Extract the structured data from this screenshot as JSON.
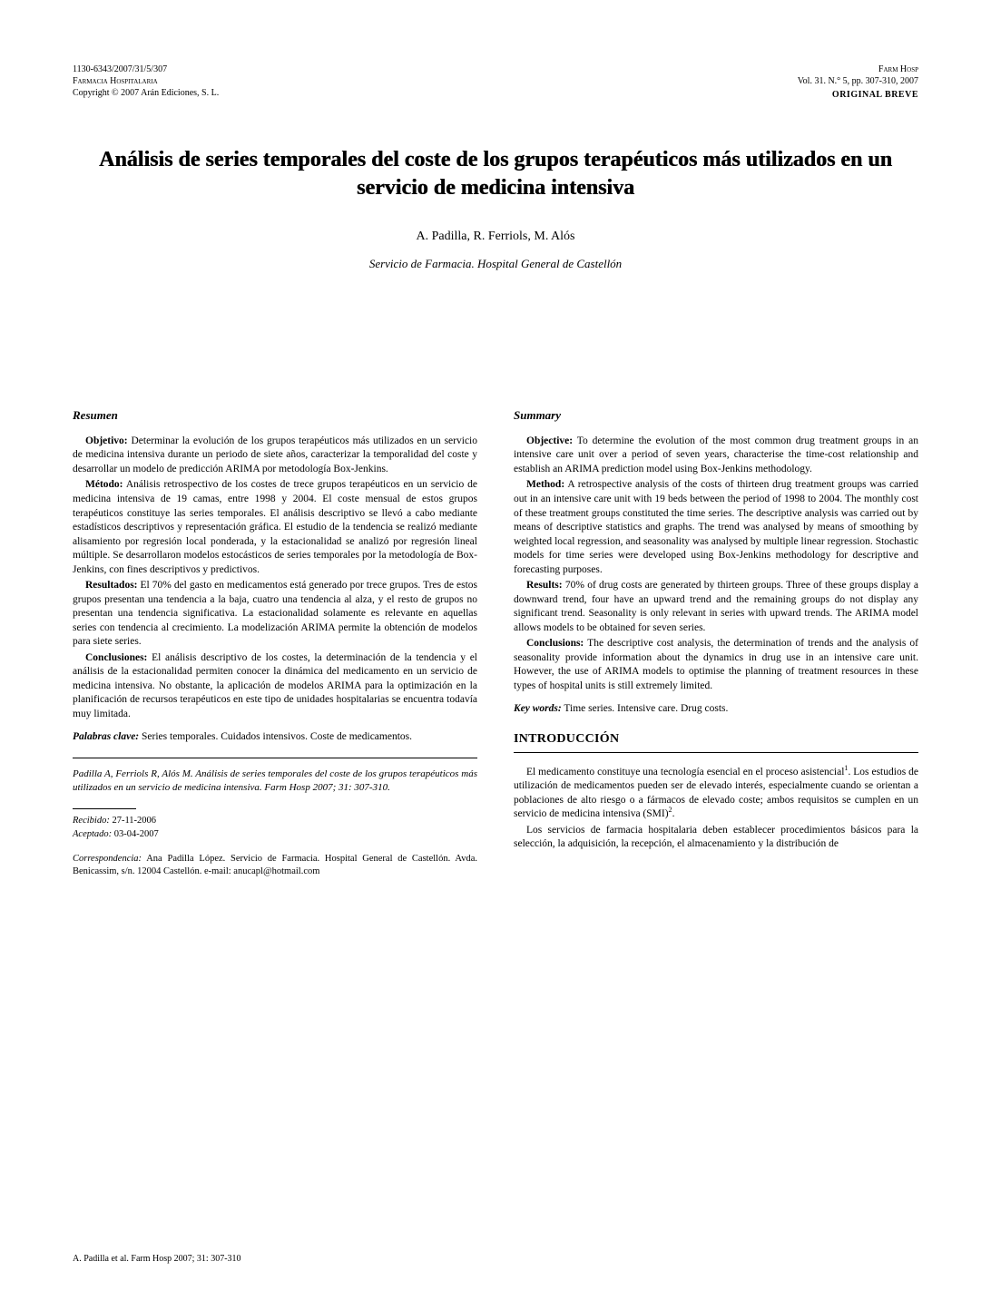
{
  "header": {
    "left_line1": "1130-6343/2007/31/5/307",
    "left_line2": "Farmacia Hospitalaria",
    "left_line3": "Copyright © 2007 Arán Ediciones, S. L.",
    "right_line1": "Farm Hosp",
    "right_line2": "Vol. 31. N.° 5, pp. 307-310, 2007",
    "badge": "ORIGINAL BREVE"
  },
  "title": "Análisis de series temporales del coste de los grupos terapéuticos más utilizados en un servicio de medicina intensiva",
  "authors": "A. Padilla, R. Ferriols, M. Alós",
  "affiliation": "Servicio de Farmacia. Hospital General de Castellón",
  "resumen": {
    "heading": "Resumen",
    "objetivo_label": "Objetivo:",
    "objetivo": " Determinar la evolución de los grupos terapéuticos más utilizados en un servicio de medicina intensiva durante un periodo de siete años, caracterizar la temporalidad del coste y desarrollar un modelo de predicción ARIMA por metodología Box-Jenkins.",
    "metodo_label": "Método:",
    "metodo": " Análisis retrospectivo de los costes de trece grupos terapéuticos en un servicio de medicina intensiva de 19 camas, entre 1998 y 2004. El coste mensual de estos grupos terapéuticos constituye las series temporales. El análisis descriptivo se llevó a cabo mediante estadísticos descriptivos y representación gráfica. El estudio de la tendencia se realizó mediante alisamiento por regresión local ponderada, y la estacionalidad se analizó por regresión lineal múltiple. Se desarrollaron modelos estocásticos de series temporales por la metodología de Box-Jenkins, con fines descriptivos y predictivos.",
    "resultados_label": "Resultados:",
    "resultados": " El 70% del gasto en medicamentos está generado por trece grupos. Tres de estos grupos presentan una tendencia a la baja, cuatro una tendencia al alza, y el resto de grupos no presentan una tendencia significativa. La estacionalidad solamente es relevante en aquellas series con tendencia al crecimiento. La modelización ARIMA permite la obtención de modelos para siete series.",
    "conclusiones_label": "Conclusiones:",
    "conclusiones": " El análisis descriptivo de los costes, la determinación de la tendencia y el análisis de la estacionalidad permiten conocer la dinámica del medicamento en un servicio de medicina intensiva. No obstante, la aplicación de modelos ARIMA para la optimización en la planificación de recursos terapéuticos en este tipo de unidades hospitalarias se encuentra todavía muy limitada.",
    "palabras_label": "Palabras clave:",
    "palabras": " Series temporales. Cuidados intensivos. Coste de medicamentos."
  },
  "citation": "Padilla A, Ferriols R, Alós M. Análisis de series temporales del coste de los grupos terapéuticos más utilizados en un servicio de medicina intensiva. Farm Hosp 2007; 31: 307-310.",
  "dates": {
    "recibido_label": "Recibido:",
    "recibido": " 27-11-2006",
    "aceptado_label": "Aceptado:",
    "aceptado": " 03-04-2007"
  },
  "correspondence": {
    "label": "Correspondencia:",
    "text": " Ana Padilla López. Servicio de Farmacia. Hospital General de Castellón. Avda. Benicassim, s/n. 12004 Castellón. e-mail: anucapl@hotmail.com"
  },
  "summary": {
    "heading": "Summary",
    "objective_label": "Objective:",
    "objective": " To determine the evolution of the most common drug treatment groups in an intensive care unit over a period of seven years, characterise the time-cost relationship and establish an ARIMA prediction model using Box-Jenkins methodology.",
    "method_label": "Method:",
    "method": " A retrospective analysis of the costs of thirteen drug treatment groups was carried out in an intensive care unit with 19 beds between the period of 1998 to 2004. The monthly cost of these treatment groups constituted the time series. The descriptive analysis was carried out by means of descriptive statistics and graphs. The trend was analysed by means of smoothing by weighted local regression, and seasonality was analysed by multiple linear regression. Stochastic models for time series were developed using Box-Jenkins methodology for descriptive and forecasting purposes.",
    "results_label": "Results:",
    "results": " 70% of drug costs are generated by thirteen groups. Three of these groups display a downward trend, four have an upward trend and the remaining groups do not display any significant trend. Seasonality is only relevant in series with upward trends. The ARIMA model allows models to be obtained for seven series.",
    "conclusions_label": "Conclusions:",
    "conclusions": " The descriptive cost analysis, the determination of trends and the analysis of seasonality provide information about the dynamics in drug use in an intensive care unit. However, the use of ARIMA models to optimise the planning of treatment resources in these types of hospital units is still extremely limited.",
    "keywords_label": "Key words:",
    "keywords": " Time series. Intensive care. Drug costs."
  },
  "introduccion": {
    "heading": "INTRODUCCIÓN",
    "p1_a": "El medicamento constituye una tecnología esencial en el proceso asistencial",
    "p1_sup1": "1",
    "p1_b": ". Los estudios de utilización de medicamentos pueden ser de elevado interés, especialmente cuando se orientan a poblaciones de alto riesgo o a fármacos de elevado coste; ambos requisitos se cumplen en un servicio de medicina intensiva (SMI)",
    "p1_sup2": "2",
    "p1_c": ".",
    "p2": "Los servicios de farmacia hospitalaria deben establecer procedimientos básicos para la selección, la adquisición, la recepción, el almacenamiento y la distribución de"
  },
  "footer": "A. Padilla et al. Farm Hosp 2007; 31: 307-310"
}
